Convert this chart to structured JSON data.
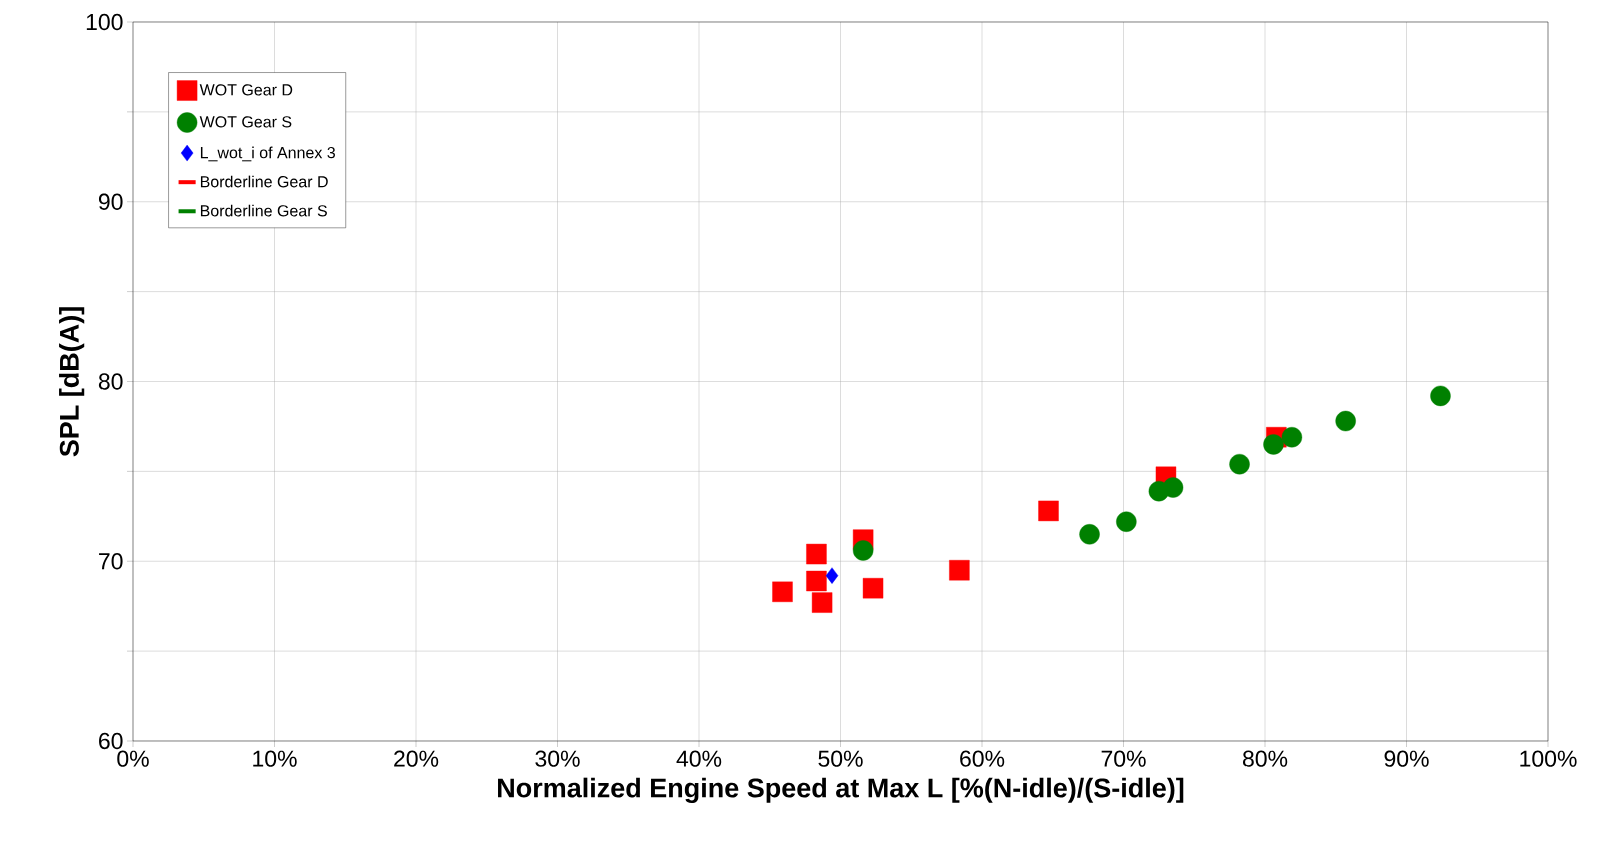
{
  "chart_data": {
    "type": "scatter",
    "xlabel": "Normalized Engine Speed at Max L [%(N-idle)/(S-idle)]",
    "ylabel": "SPL [dB(A)]",
    "xlim": [
      0,
      100
    ],
    "ylim": [
      60,
      100
    ],
    "xticks": [
      {
        "value": 0,
        "label": "0%"
      },
      {
        "value": 10,
        "label": "10%"
      },
      {
        "value": 20,
        "label": "20%"
      },
      {
        "value": 30,
        "label": "30%"
      },
      {
        "value": 40,
        "label": "40%"
      },
      {
        "value": 50,
        "label": "50%"
      },
      {
        "value": 60,
        "label": "60%"
      },
      {
        "value": 70,
        "label": "70%"
      },
      {
        "value": 80,
        "label": "80%"
      },
      {
        "value": 90,
        "label": "90%"
      },
      {
        "value": 100,
        "label": "100%"
      }
    ],
    "yticks": [
      60,
      {
        "value": 65,
        "label": null
      },
      70,
      {
        "value": 75,
        "label": null
      },
      80,
      {
        "value": 85,
        "label": null
      },
      90,
      {
        "value": 95,
        "label": null
      },
      100
    ],
    "grid": true,
    "legend": "top left",
    "series": [
      {
        "name": "WOT Gear D",
        "marker": "square",
        "color": "#ff0000",
        "x": [
          45.9,
          48.3,
          48.3,
          48.7,
          51.6,
          52.3,
          58.4,
          64.7,
          73.0,
          80.8
        ],
        "values": [
          68.3,
          70.4,
          68.9,
          67.7,
          71.2,
          68.5,
          69.5,
          72.8,
          74.7,
          76.9
        ]
      },
      {
        "name": "WOT Gear S",
        "marker": "circle",
        "color": "#008000",
        "x": [
          51.6,
          67.6,
          70.2,
          72.5,
          73.5,
          78.2,
          80.6,
          81.9,
          85.7,
          92.4
        ],
        "values": [
          70.6,
          71.5,
          72.2,
          73.9,
          74.1,
          75.4,
          76.5,
          76.9,
          77.8,
          79.2
        ]
      },
      {
        "name": "L_wot_i of Annex 3",
        "marker": "diamond",
        "color": "#0000ff",
        "x": [
          49.4
        ],
        "values": [
          69.2
        ]
      },
      {
        "name": "Borderline Gear D",
        "type": "line",
        "marker": "none",
        "color": "#ff0000"
      },
      {
        "name": "Borderline Gear S",
        "type": "line",
        "marker": "none",
        "color": "#008000"
      }
    ]
  }
}
